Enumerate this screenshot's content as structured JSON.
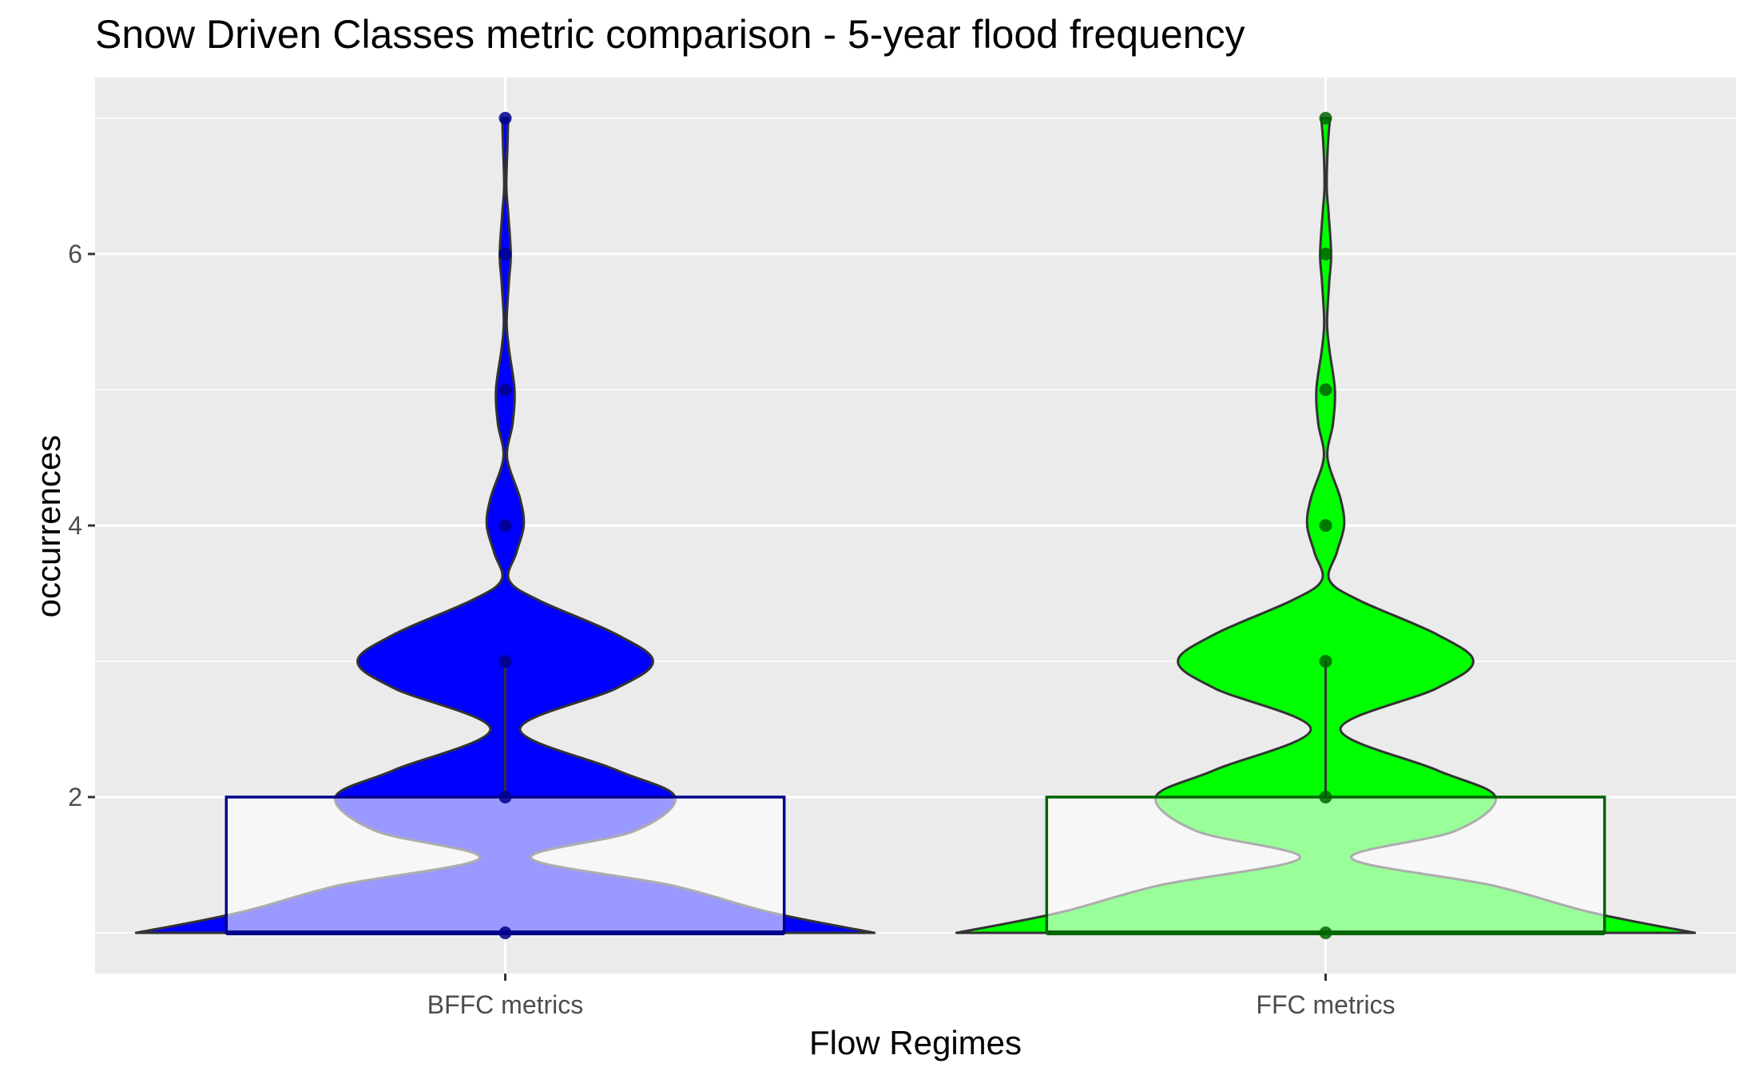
{
  "chart_data": {
    "type": "violin",
    "title": "Snow Driven Classes metric comparison - 5-year flood frequency",
    "xlabel": "Flow Regimes",
    "ylabel": "occurrences",
    "categories": [
      "BFFC metrics",
      "FFC metrics"
    ],
    "ylim": [
      0.7,
      7.3
    ],
    "yticks": [
      2,
      4,
      6
    ],
    "grid": true,
    "legend": "none",
    "series": [
      {
        "category": "BFFC metrics",
        "fill": "#0000ff",
        "point_color": "#00008b",
        "box_color": "#00008b",
        "points": [
          1,
          2,
          3,
          4,
          5,
          6,
          7
        ],
        "box": {
          "q1": 1,
          "median": 1,
          "q3": 2,
          "whisker_low": 1,
          "whisker_high": 3
        },
        "density": [
          [
            1.0,
            1.0
          ],
          [
            1.15,
            0.72
          ],
          [
            1.35,
            0.45
          ],
          [
            1.55,
            0.07
          ],
          [
            1.75,
            0.35
          ],
          [
            2.0,
            0.46
          ],
          [
            2.2,
            0.3
          ],
          [
            2.5,
            0.04
          ],
          [
            2.8,
            0.3
          ],
          [
            3.0,
            0.4
          ],
          [
            3.2,
            0.3
          ],
          [
            3.45,
            0.09
          ],
          [
            3.6,
            0.01
          ],
          [
            3.8,
            0.03
          ],
          [
            4.0,
            0.05
          ],
          [
            4.2,
            0.04
          ],
          [
            4.5,
            0.005
          ],
          [
            4.75,
            0.02
          ],
          [
            5.0,
            0.025
          ],
          [
            5.3,
            0.01
          ],
          [
            5.5,
            0.004
          ],
          [
            5.8,
            0.01
          ],
          [
            6.0,
            0.015
          ],
          [
            6.3,
            0.008
          ],
          [
            6.5,
            0.003
          ],
          [
            6.8,
            0.006
          ],
          [
            7.0,
            0.008
          ]
        ]
      },
      {
        "category": "FFC metrics",
        "fill": "#00ff00",
        "point_color": "#006400",
        "box_color": "#006400",
        "points": [
          1,
          2,
          3,
          4,
          5,
          6,
          7
        ],
        "box": {
          "q1": 1,
          "median": 1,
          "q3": 2,
          "whisker_low": 1,
          "whisker_high": 3
        },
        "density": [
          [
            1.0,
            1.0
          ],
          [
            1.15,
            0.72
          ],
          [
            1.35,
            0.45
          ],
          [
            1.55,
            0.07
          ],
          [
            1.75,
            0.35
          ],
          [
            2.0,
            0.46
          ],
          [
            2.2,
            0.3
          ],
          [
            2.5,
            0.04
          ],
          [
            2.8,
            0.3
          ],
          [
            3.0,
            0.4
          ],
          [
            3.2,
            0.3
          ],
          [
            3.45,
            0.09
          ],
          [
            3.6,
            0.01
          ],
          [
            3.8,
            0.03
          ],
          [
            4.0,
            0.05
          ],
          [
            4.2,
            0.04
          ],
          [
            4.5,
            0.005
          ],
          [
            4.75,
            0.02
          ],
          [
            5.0,
            0.025
          ],
          [
            5.3,
            0.01
          ],
          [
            5.5,
            0.004
          ],
          [
            5.8,
            0.01
          ],
          [
            6.0,
            0.015
          ],
          [
            6.3,
            0.008
          ],
          [
            6.5,
            0.003
          ],
          [
            6.8,
            0.006
          ],
          [
            7.0,
            0.012
          ]
        ]
      }
    ]
  },
  "colors": {
    "panel_background": "#ebebeb",
    "grid": "#ffffff",
    "outline": "#333333",
    "box_fill": "#ffffff",
    "tick_text": "#4d4d4d"
  }
}
